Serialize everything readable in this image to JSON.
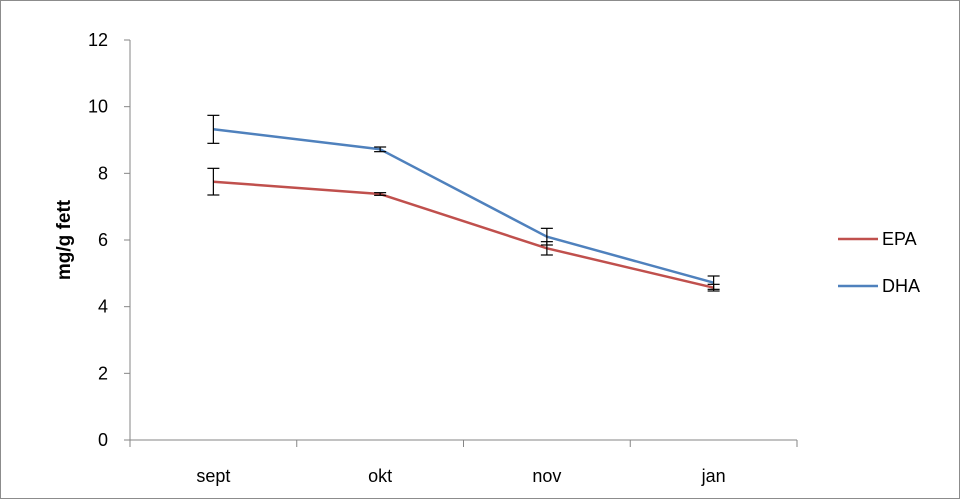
{
  "chart_data": {
    "type": "line",
    "title": "",
    "xlabel": "",
    "ylabel": "mg/g fett",
    "categories": [
      "sept",
      "okt",
      "nov",
      "jan"
    ],
    "ylim": [
      0,
      12
    ],
    "yticks": [
      "0",
      "2",
      "4",
      "6",
      "8",
      "10",
      "12"
    ],
    "grid": false,
    "legend_position": "right",
    "series": [
      {
        "name": "EPA",
        "color": "#c0504d",
        "values": [
          7.75,
          7.38,
          5.75,
          4.57
        ],
        "errors": [
          0.4,
          0.04,
          0.2,
          0.1
        ]
      },
      {
        "name": "DHA",
        "color": "#4f81bd",
        "values": [
          9.32,
          8.72,
          6.1,
          4.72
        ],
        "errors": [
          0.42,
          0.07,
          0.25,
          0.2
        ]
      }
    ]
  }
}
